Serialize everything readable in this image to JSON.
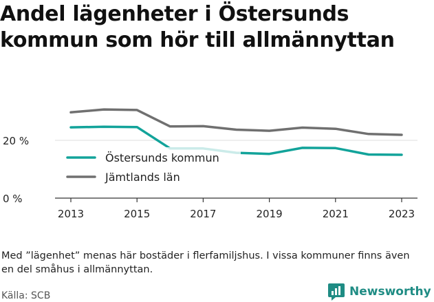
{
  "title": "Andel lägenheter i Östersunds kommun som hör till allmännyttan",
  "note": "Med ”lägenhet” menas här bostäder i flerfamiljshus. I vissa kommuner finns även en del småhus i allmännyttan.",
  "source": "Källa: SCB",
  "brand": "Newsworthy",
  "colors": {
    "ostersund": "#12a39a",
    "jamtland": "#707070",
    "grid": "#dddddd",
    "axis": "#333333",
    "brand": "#1f8c84"
  },
  "chart_data": {
    "type": "line",
    "x": [
      2013,
      2014,
      2015,
      2016,
      2017,
      2018,
      2019,
      2020,
      2021,
      2022,
      2023
    ],
    "x_ticks": [
      "2013",
      "2015",
      "2017",
      "2019",
      "2021",
      "2023"
    ],
    "y_ticks": [
      "0 %",
      "20 %"
    ],
    "ylim": [
      0,
      40
    ],
    "grid": true,
    "legend_position": "inside-left",
    "series": [
      {
        "name": "Östersunds kommun",
        "color": "#12a39a",
        "values": [
          24.5,
          24.7,
          24.6,
          17.2,
          17.2,
          15.7,
          15.3,
          17.4,
          17.3,
          15.1,
          15.0
        ]
      },
      {
        "name": "Jämtlands län",
        "color": "#707070",
        "values": [
          29.7,
          30.7,
          30.5,
          24.8,
          24.9,
          23.7,
          23.3,
          24.4,
          24.0,
          22.2,
          21.9
        ]
      }
    ]
  }
}
